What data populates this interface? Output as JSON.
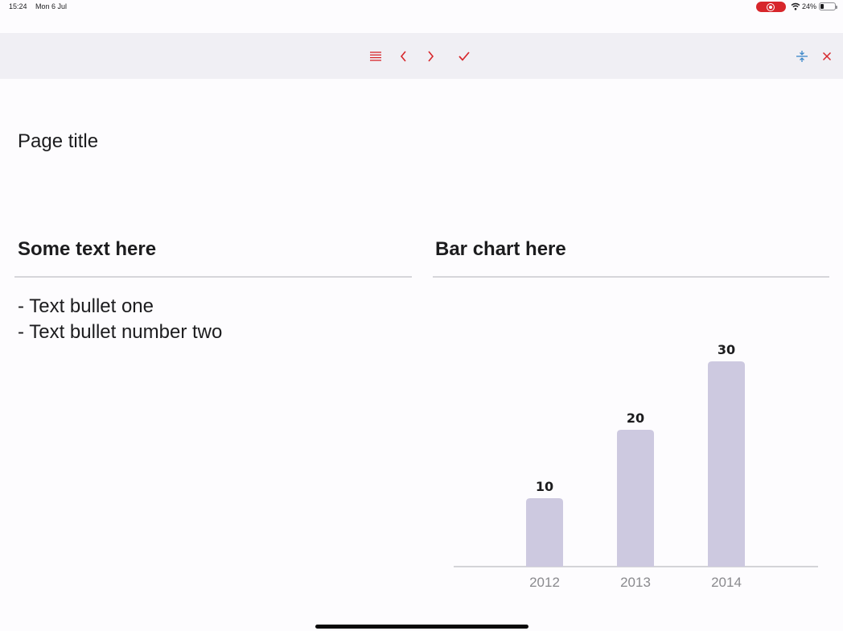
{
  "status_bar": {
    "time": "15:24",
    "date": "Mon 6 Jul",
    "battery": "24%",
    "battery_level": 0.24,
    "recording_color": "#d7262b"
  },
  "toolbar": {
    "icons": [
      "list-icon",
      "chevron-left-icon",
      "chevron-right-icon",
      "checkmark-icon",
      "split-icon",
      "close-icon"
    ],
    "accent_color": "#d7262b",
    "split_color": "#3a86c8"
  },
  "page": {
    "title": "Page title"
  },
  "left_section": {
    "title": "Some text here",
    "bullets": [
      "- Text bullet one",
      "- Text bullet number two"
    ]
  },
  "right_section": {
    "title": "Bar chart here"
  },
  "chart_data": {
    "type": "bar",
    "categories": [
      "2012",
      "2013",
      "2014"
    ],
    "values": [
      10,
      20,
      30
    ],
    "data_labels": [
      "10",
      "20",
      "30"
    ],
    "bar_color": "#cdc9e0",
    "ylim": [
      0,
      30
    ],
    "grid": false,
    "legend": "none"
  }
}
